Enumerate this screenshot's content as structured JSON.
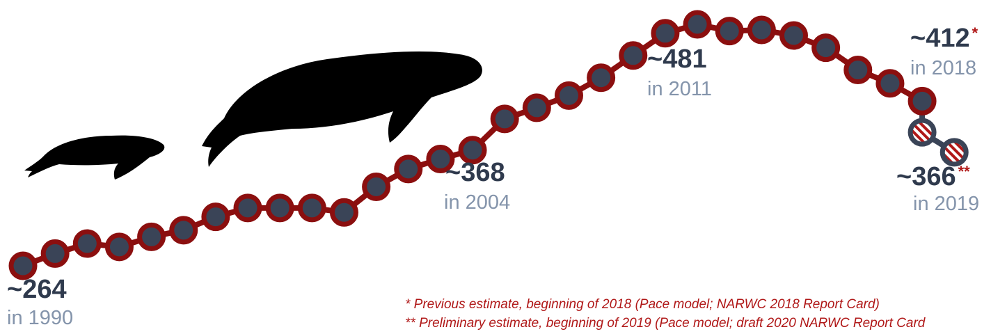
{
  "chart_data": {
    "type": "line",
    "x": [
      1990,
      1991,
      1992,
      1993,
      1994,
      1995,
      1996,
      1997,
      1998,
      1999,
      2000,
      2001,
      2002,
      2003,
      2004,
      2005,
      2006,
      2007,
      2008,
      2009,
      2010,
      2011,
      2012,
      2013,
      2014,
      2015,
      2016,
      2017,
      2018,
      2019
    ],
    "series": [
      {
        "color": "#8b0f0f",
        "values": [
          264,
          275,
          284,
          281,
          290,
          296,
          308,
          316,
          316,
          316,
          312,
          335,
          351,
          360,
          368,
          396,
          406,
          417,
          433,
          453,
          473,
          481,
          475,
          476,
          471,
          460,
          440,
          428,
          412,
          null
        ],
        "value_labels": [
          "~264",
          null,
          null,
          null,
          null,
          null,
          null,
          null,
          null,
          null,
          null,
          null,
          null,
          null,
          "~368",
          null,
          null,
          null,
          null,
          null,
          null,
          "~481",
          null,
          null,
          null,
          null,
          null,
          null,
          "~412",
          null
        ]
      },
      {
        "color": "#3a4457",
        "values": [
          null,
          null,
          null,
          null,
          null,
          null,
          null,
          null,
          null,
          null,
          null,
          null,
          null,
          null,
          null,
          null,
          null,
          null,
          null,
          null,
          null,
          null,
          null,
          null,
          null,
          null,
          null,
          null,
          384,
          366
        ],
        "value_labels": [
          null,
          null,
          null,
          null,
          null,
          null,
          null,
          null,
          null,
          null,
          null,
          null,
          null,
          null,
          null,
          null,
          null,
          null,
          null,
          null,
          null,
          null,
          null,
          null,
          null,
          null,
          null,
          null,
          null,
          "~366"
        ]
      }
    ],
    "annotations": [
      "in 1990",
      "in 2004",
      "in 2011",
      "in 2018",
      "in 2019"
    ],
    "footnote_marks": [
      "*",
      "**"
    ],
    "footnotes": [
      "* Previous estimate, beginning of 2018 (Pace model; NARWC 2018 Report Card)",
      "** Preliminary estimate, beginning of 2019 (Pace model; draft 2020 NARWC Report Card"
    ],
    "xlim": [
      1990,
      2018.8
    ],
    "ylim": [
      264,
      481
    ]
  }
}
